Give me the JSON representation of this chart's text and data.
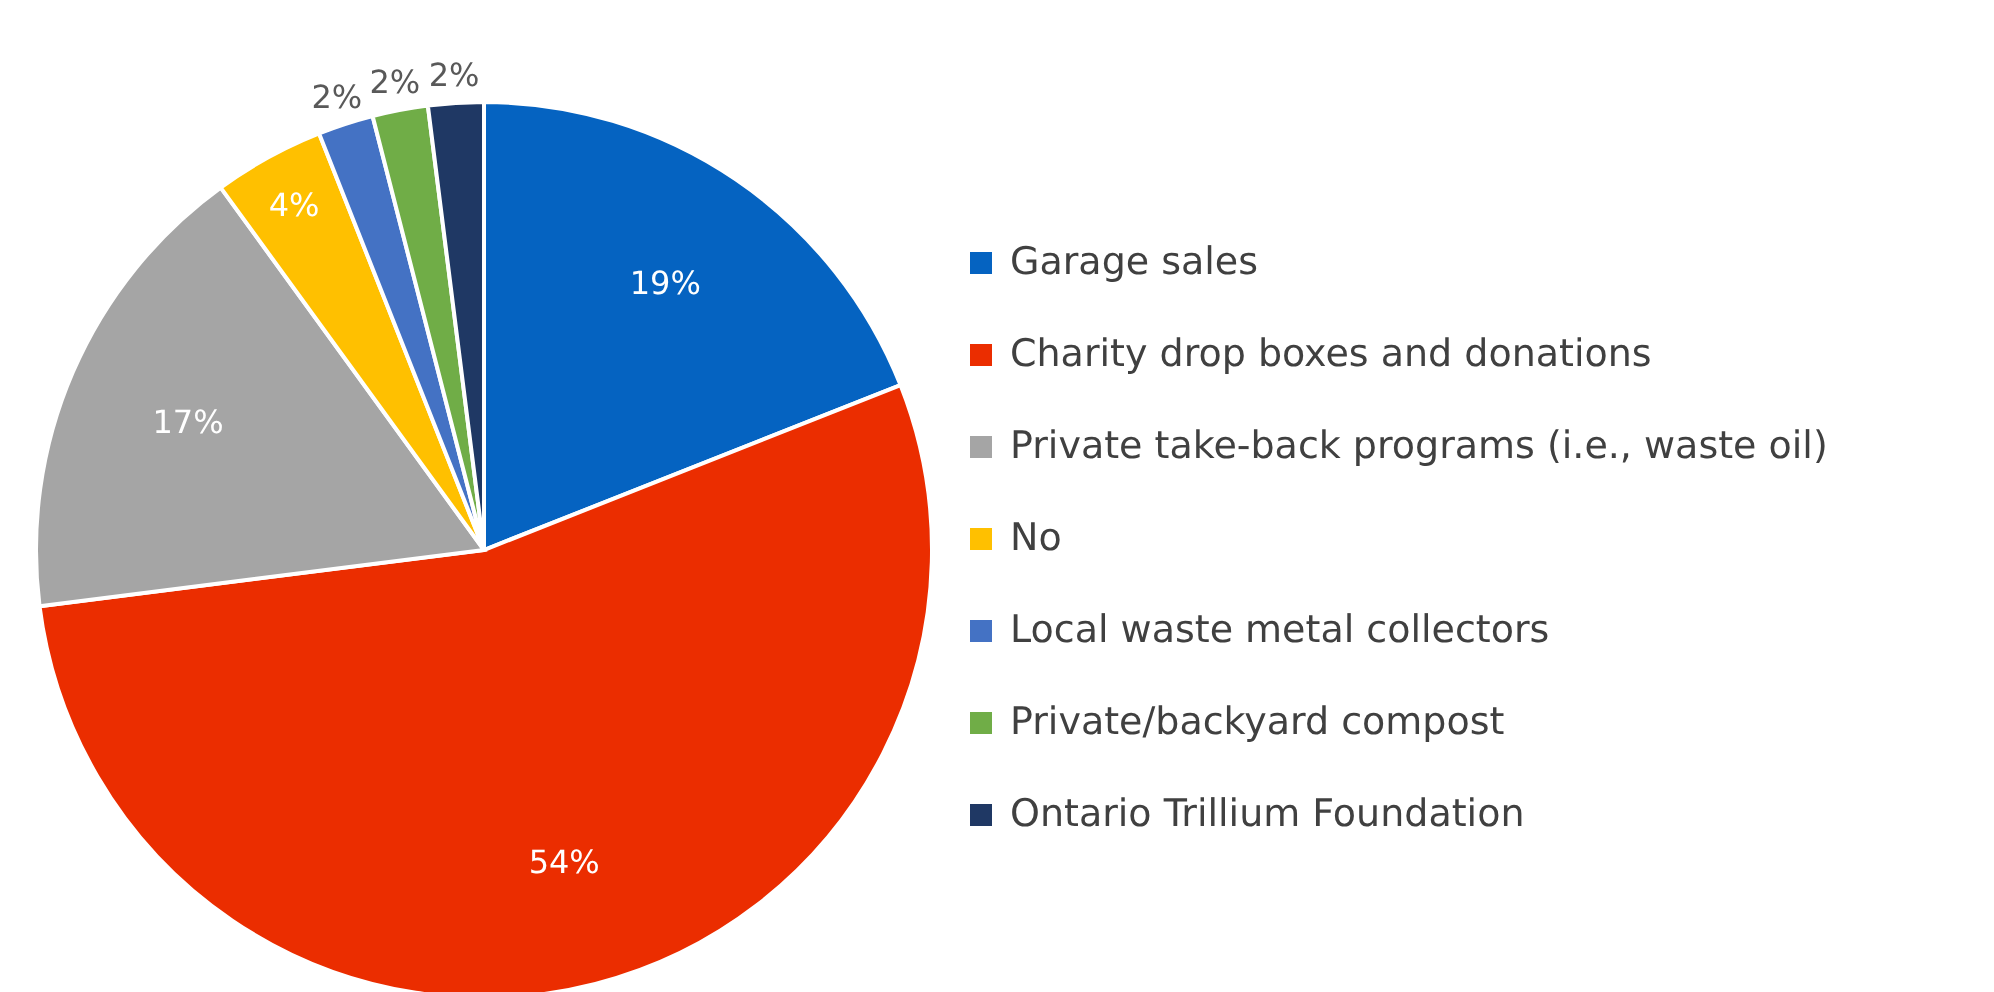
{
  "chart_data": {
    "type": "pie",
    "categories": [
      "Garage sales",
      "Charity drop boxes and donations",
      "Private take-back programs (i.e., waste oil)",
      "No",
      "Local waste metal collectors",
      "Private/backyard compost",
      "Ontario Trillium Foundation"
    ],
    "values": [
      19,
      54,
      17,
      4,
      2,
      2,
      2
    ],
    "value_labels": [
      "19%",
      "54%",
      "17%",
      "4%",
      "2%",
      "2%",
      "2%"
    ],
    "colors": [
      "#0563c1",
      "#eb2d00",
      "#a5a5a5",
      "#ffc000",
      "#4472c4",
      "#70ad47",
      "#1f3864"
    ],
    "legend": "right"
  }
}
